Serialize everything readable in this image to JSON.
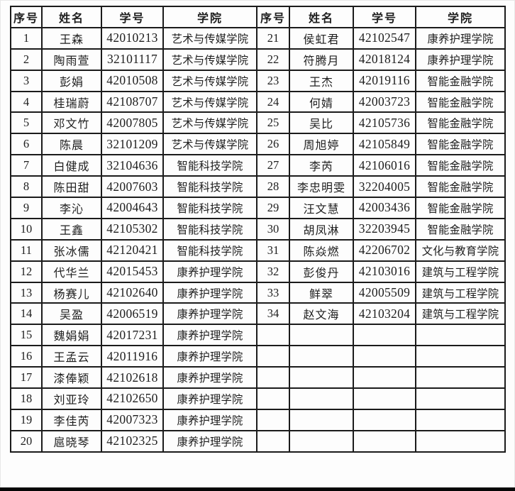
{
  "table": {
    "headers": [
      "序号",
      "姓名",
      "学号",
      "学院"
    ],
    "students": [
      {
        "no": "1",
        "name": "王森",
        "student_id": "42010213",
        "college": "艺术与传媒学院"
      },
      {
        "no": "2",
        "name": "陶雨萱",
        "student_id": "32101117",
        "college": "艺术与传媒学院"
      },
      {
        "no": "3",
        "name": "彭娟",
        "student_id": "42010508",
        "college": "艺术与传媒学院"
      },
      {
        "no": "4",
        "name": "桂瑞蔚",
        "student_id": "42108707",
        "college": "艺术与传媒学院"
      },
      {
        "no": "5",
        "name": "邓文竹",
        "student_id": "42007805",
        "college": "艺术与传媒学院"
      },
      {
        "no": "6",
        "name": "陈晨",
        "student_id": "32101209",
        "college": "艺术与传媒学院"
      },
      {
        "no": "7",
        "name": "白健成",
        "student_id": "32104636",
        "college": "智能科技学院"
      },
      {
        "no": "8",
        "name": "陈田甜",
        "student_id": "42007603",
        "college": "智能科技学院"
      },
      {
        "no": "9",
        "name": "李沁",
        "student_id": "42004643",
        "college": "智能科技学院"
      },
      {
        "no": "10",
        "name": "王鑫",
        "student_id": "42105302",
        "college": "智能科技学院"
      },
      {
        "no": "11",
        "name": "张冰儒",
        "student_id": "42120421",
        "college": "智能科技学院"
      },
      {
        "no": "12",
        "name": "代华兰",
        "student_id": "42015453",
        "college": "康养护理学院"
      },
      {
        "no": "13",
        "name": "杨赛儿",
        "student_id": "42102640",
        "college": "康养护理学院"
      },
      {
        "no": "14",
        "name": "吴盈",
        "student_id": "42006519",
        "college": "康养护理学院"
      },
      {
        "no": "15",
        "name": "魏娟娟",
        "student_id": "42017231",
        "college": "康养护理学院"
      },
      {
        "no": "16",
        "name": "王孟云",
        "student_id": "42011916",
        "college": "康养护理学院"
      },
      {
        "no": "17",
        "name": "漆俸颖",
        "student_id": "42102618",
        "college": "康养护理学院"
      },
      {
        "no": "18",
        "name": "刘亚玲",
        "student_id": "42102650",
        "college": "康养护理学院"
      },
      {
        "no": "19",
        "name": "李佳芮",
        "student_id": "42007323",
        "college": "康养护理学院"
      },
      {
        "no": "20",
        "name": "扈晓琴",
        "student_id": "42102325",
        "college": "康养护理学院"
      },
      {
        "no": "21",
        "name": "侯虹君",
        "student_id": "42102547",
        "college": "康养护理学院"
      },
      {
        "no": "22",
        "name": "符腾月",
        "student_id": "42018124",
        "college": "康养护理学院"
      },
      {
        "no": "23",
        "name": "王杰",
        "student_id": "42019116",
        "college": "智能金融学院"
      },
      {
        "no": "24",
        "name": "何婧",
        "student_id": "42003723",
        "college": "智能金融学院"
      },
      {
        "no": "25",
        "name": "吴比",
        "student_id": "42105736",
        "college": "智能金融学院"
      },
      {
        "no": "26",
        "name": "周旭婷",
        "student_id": "42105849",
        "college": "智能金融学院"
      },
      {
        "no": "27",
        "name": "李芮",
        "student_id": "42106016",
        "college": "智能金融学院"
      },
      {
        "no": "28",
        "name": "李忠明雯",
        "student_id": "32204005",
        "college": "智能金融学院"
      },
      {
        "no": "29",
        "name": "汪文慧",
        "student_id": "42003436",
        "college": "智能金融学院"
      },
      {
        "no": "30",
        "name": "胡凤淋",
        "student_id": "32203945",
        "college": "智能金融学院"
      },
      {
        "no": "31",
        "name": "陈焱燃",
        "student_id": "42206702",
        "college": "文化与教育学院"
      },
      {
        "no": "32",
        "name": "彭俊丹",
        "student_id": "42103016",
        "college": "建筑与工程学院"
      },
      {
        "no": "33",
        "name": "鲜翠",
        "student_id": "42005509",
        "college": "建筑与工程学院"
      },
      {
        "no": "34",
        "name": "赵文海",
        "student_id": "42103204",
        "college": "建筑与工程学院"
      }
    ]
  }
}
